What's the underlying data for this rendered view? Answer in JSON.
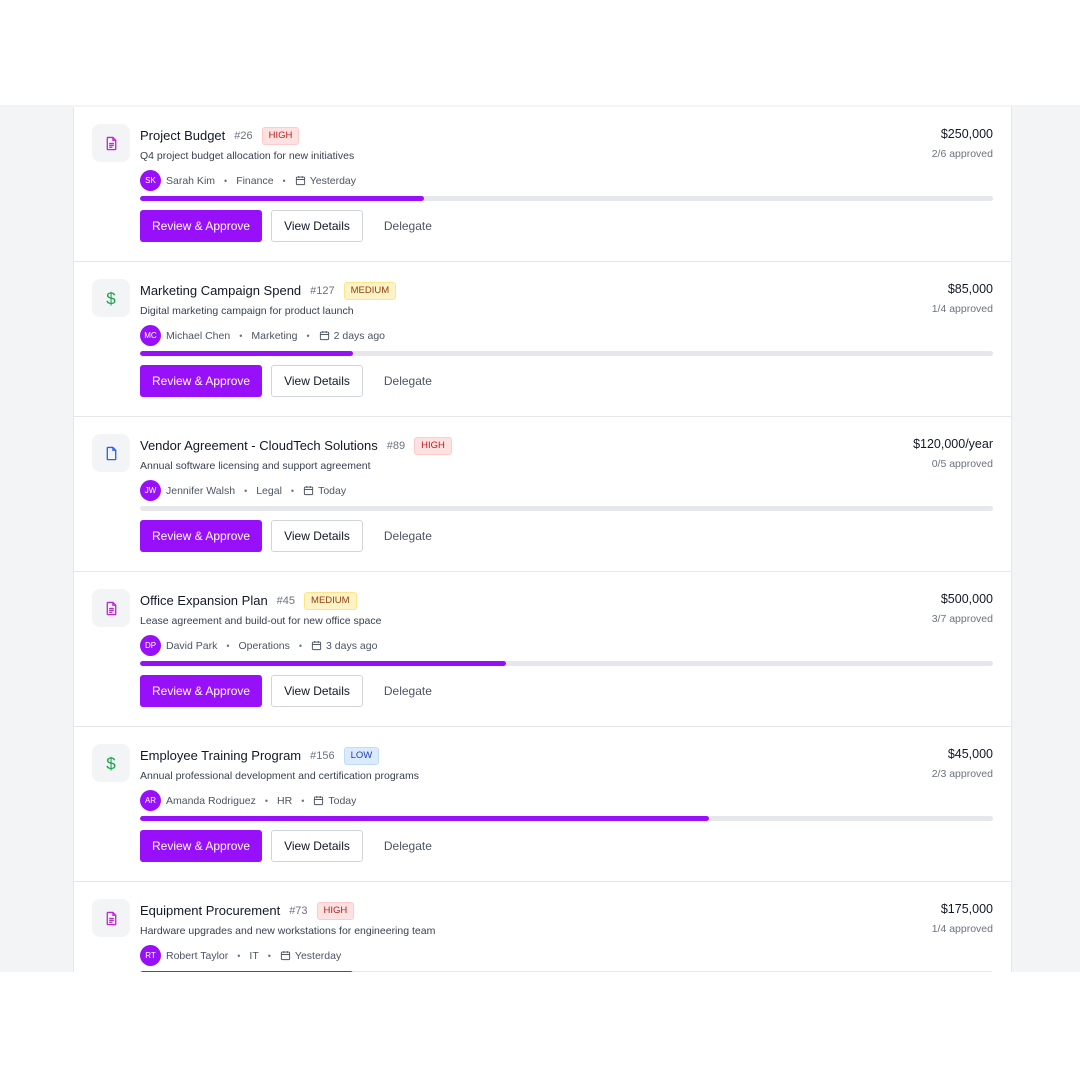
{
  "approvals": [
    {
      "icon": "document-icon",
      "title": "Project Budget",
      "id": "#26",
      "priority": "HIGH",
      "priority_level": "high",
      "description": "Q4 project budget allocation for new initiatives",
      "avatar_initials": "SK",
      "requester": "Sarah Kim",
      "department": "Finance",
      "date": "Yesterday",
      "amount": "$250,000",
      "approved_text": "2/6 approved",
      "progress": 0.333,
      "primary_label": "Review & Approve",
      "secondary_label": "View Details",
      "ghost_label": "Delegate"
    },
    {
      "icon": "dollar-icon",
      "title": "Marketing Campaign Spend",
      "id": "#127",
      "priority": "MEDIUM",
      "priority_level": "medium",
      "description": "Digital marketing campaign for product launch",
      "avatar_initials": "MC",
      "requester": "Michael Chen",
      "department": "Marketing",
      "date": "2 days ago",
      "amount": "$85,000",
      "approved_text": "1/4 approved",
      "progress": 0.25,
      "primary_label": "Review & Approve",
      "secondary_label": "View Details",
      "ghost_label": "Delegate"
    },
    {
      "icon": "file-icon",
      "title": "Vendor Agreement - CloudTech Solutions",
      "id": "#89",
      "priority": "HIGH",
      "priority_level": "high",
      "description": "Annual software licensing and support agreement",
      "avatar_initials": "JW",
      "requester": "Jennifer Walsh",
      "department": "Legal",
      "date": "Today",
      "amount": "$120,000/year",
      "approved_text": "0/5 approved",
      "progress": 0,
      "primary_label": "Review & Approve",
      "secondary_label": "View Details",
      "ghost_label": "Delegate"
    },
    {
      "icon": "document-icon",
      "title": "Office Expansion Plan",
      "id": "#45",
      "priority": "MEDIUM",
      "priority_level": "medium",
      "description": "Lease agreement and build-out for new office space",
      "avatar_initials": "DP",
      "requester": "David Park",
      "department": "Operations",
      "date": "3 days ago",
      "amount": "$500,000",
      "approved_text": "3/7 approved",
      "progress": 0.4286,
      "primary_label": "Review & Approve",
      "secondary_label": "View Details",
      "ghost_label": "Delegate"
    },
    {
      "icon": "dollar-icon",
      "title": "Employee Training Program",
      "id": "#156",
      "priority": "LOW",
      "priority_level": "low",
      "description": "Annual professional development and certification programs",
      "avatar_initials": "AR",
      "requester": "Amanda Rodriguez",
      "department": "HR",
      "date": "Today",
      "amount": "$45,000",
      "approved_text": "2/3 approved",
      "progress": 0.6667,
      "primary_label": "Review & Approve",
      "secondary_label": "View Details",
      "ghost_label": "Delegate"
    },
    {
      "icon": "document-icon",
      "title": "Equipment Procurement",
      "id": "#73",
      "priority": "HIGH",
      "priority_level": "high",
      "description": "Hardware upgrades and new workstations for engineering team",
      "avatar_initials": "RT",
      "requester": "Robert Taylor",
      "department": "IT",
      "date": "Yesterday",
      "amount": "$175,000",
      "approved_text": "1/4 approved",
      "progress": 0.25,
      "primary_label": "Review & Approve",
      "secondary_label": "View Details",
      "ghost_label": "Delegate"
    }
  ],
  "colors": {
    "accent": "#9810fa",
    "document_icon": "#c026d3",
    "file_icon": "#2563eb",
    "dollar_icon": "#16a34a"
  }
}
